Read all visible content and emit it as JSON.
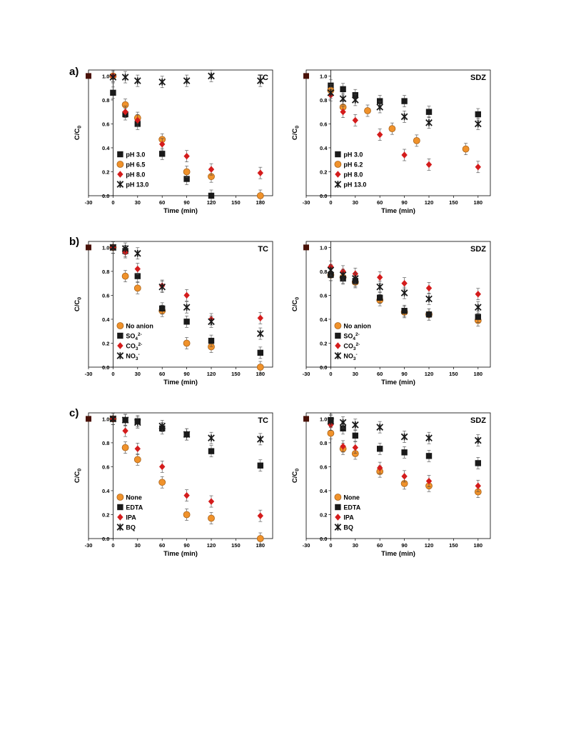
{
  "colors": {
    "orange": "#f0922b",
    "orange_edge": "#a8621a",
    "black": "#1a1a1a",
    "red": "#d41c1c",
    "axis": "#000000",
    "start_marker": "#4a1208"
  },
  "panel_labels": {
    "a": "a)",
    "b": "b)",
    "c": "c)"
  },
  "chart_data": [
    {
      "id": "a-TC",
      "type": "scatter",
      "title": "TC",
      "xlabel": "Time (min)",
      "ylabel": "C/C0",
      "xlim": [
        -30,
        195
      ],
      "ylim": [
        0,
        1.05
      ],
      "xticks": [
        "-30",
        "0",
        "30",
        "60",
        "90",
        "120",
        "150",
        "180"
      ],
      "yticks": [
        "0.0",
        "0.2",
        "0.4",
        "0.6",
        "0.8",
        "1.0"
      ],
      "grid": false,
      "legend_position": "bottom-left",
      "series": [
        {
          "name": "pH 3.0",
          "marker": "square",
          "color": "#1a1a1a",
          "points": [
            [
              0,
              0.86
            ],
            [
              15,
              0.68
            ],
            [
              30,
              0.6
            ],
            [
              60,
              0.35
            ],
            [
              90,
              0.14
            ],
            [
              120,
              0.0
            ]
          ]
        },
        {
          "name": "pH 6.5",
          "marker": "circle",
          "color": "#f0922b",
          "points": [
            [
              0,
              1.0
            ],
            [
              15,
              0.76
            ],
            [
              30,
              0.65
            ],
            [
              60,
              0.47
            ],
            [
              90,
              0.2
            ],
            [
              120,
              0.16
            ],
            [
              180,
              0.0
            ]
          ]
        },
        {
          "name": "pH 8.0",
          "marker": "diamond",
          "color": "#d41c1c",
          "points": [
            [
              0,
              1.0
            ],
            [
              15,
              0.7
            ],
            [
              30,
              0.63
            ],
            [
              60,
              0.43
            ],
            [
              90,
              0.33
            ],
            [
              120,
              0.22
            ],
            [
              180,
              0.19
            ]
          ]
        },
        {
          "name": "pH 13.0",
          "marker": "star",
          "color": "#1a1a1a",
          "points": [
            [
              0,
              0.99
            ],
            [
              15,
              0.99
            ],
            [
              30,
              0.96
            ],
            [
              60,
              0.95
            ],
            [
              90,
              0.96
            ],
            [
              120,
              1.0
            ],
            [
              180,
              0.96
            ]
          ]
        }
      ]
    },
    {
      "id": "a-SDZ",
      "type": "scatter",
      "title": "SDZ",
      "xlabel": "Time (min)",
      "ylabel": "C/C0",
      "xlim": [
        -30,
        195
      ],
      "ylim": [
        0,
        1.05
      ],
      "xticks": [
        "-30",
        "0",
        "30",
        "60",
        "90",
        "120",
        "150",
        "180"
      ],
      "yticks": [
        "0.0",
        "0.2",
        "0.4",
        "0.6",
        "0.8",
        "1.0"
      ],
      "grid": false,
      "legend_position": "bottom-left",
      "series": [
        {
          "name": "pH 3.0",
          "marker": "square",
          "color": "#1a1a1a",
          "points": [
            [
              0,
              0.92
            ],
            [
              15,
              0.89
            ],
            [
              30,
              0.84
            ],
            [
              60,
              0.79
            ],
            [
              90,
              0.79
            ],
            [
              120,
              0.7
            ],
            [
              180,
              0.68
            ]
          ]
        },
        {
          "name": "pH 6.2",
          "marker": "circle",
          "color": "#f0922b",
          "points": [
            [
              0,
              0.88
            ],
            [
              15,
              0.74
            ],
            [
              45,
              0.71
            ],
            [
              75,
              0.56
            ],
            [
              105,
              0.46
            ],
            [
              165,
              0.39
            ]
          ]
        },
        {
          "name": "pH 8.0",
          "marker": "diamond",
          "color": "#d41c1c",
          "points": [
            [
              0,
              0.84
            ],
            [
              15,
              0.7
            ],
            [
              30,
              0.63
            ],
            [
              60,
              0.51
            ],
            [
              90,
              0.34
            ],
            [
              120,
              0.26
            ],
            [
              180,
              0.24
            ]
          ]
        },
        {
          "name": "pH 13.0",
          "marker": "star",
          "color": "#1a1a1a",
          "points": [
            [
              0,
              0.86
            ],
            [
              15,
              0.81
            ],
            [
              30,
              0.8
            ],
            [
              60,
              0.74
            ],
            [
              90,
              0.66
            ],
            [
              120,
              0.61
            ],
            [
              180,
              0.6
            ]
          ]
        }
      ]
    },
    {
      "id": "b-TC",
      "type": "scatter",
      "title": "TC",
      "xlabel": "Time (min)",
      "ylabel": "C/C0",
      "xlim": [
        -30,
        195
      ],
      "ylim": [
        0,
        1.05
      ],
      "xticks": [
        "-30",
        "0",
        "30",
        "60",
        "90",
        "120",
        "150",
        "180"
      ],
      "yticks": [
        "0.0",
        "0.2",
        "0.4",
        "0.6",
        "0.8",
        "1.0"
      ],
      "grid": false,
      "legend_position": "bottom-left",
      "series": [
        {
          "name": "No anion",
          "marker": "circle",
          "color": "#f0922b",
          "points": [
            [
              0,
              1.0
            ],
            [
              15,
              0.76
            ],
            [
              30,
              0.66
            ],
            [
              60,
              0.47
            ],
            [
              90,
              0.2
            ],
            [
              120,
              0.17
            ],
            [
              180,
              0.0
            ]
          ]
        },
        {
          "name": "SO42-",
          "marker": "square",
          "color": "#1a1a1a",
          "points": [
            [
              0,
              1.0
            ],
            [
              15,
              0.97
            ],
            [
              30,
              0.76
            ],
            [
              60,
              0.49
            ],
            [
              90,
              0.38
            ],
            [
              120,
              0.22
            ],
            [
              180,
              0.12
            ]
          ]
        },
        {
          "name": "CO32-",
          "marker": "diamond",
          "color": "#d41c1c",
          "points": [
            [
              0,
              1.0
            ],
            [
              15,
              0.96
            ],
            [
              30,
              0.82
            ],
            [
              60,
              0.68
            ],
            [
              90,
              0.6
            ],
            [
              120,
              0.4
            ],
            [
              180,
              0.41
            ]
          ]
        },
        {
          "name": "NO3-",
          "marker": "star",
          "color": "#1a1a1a",
          "points": [
            [
              0,
              1.0
            ],
            [
              15,
              0.99
            ],
            [
              30,
              0.95
            ],
            [
              60,
              0.67
            ],
            [
              90,
              0.5
            ],
            [
              120,
              0.38
            ],
            [
              180,
              0.28
            ]
          ]
        }
      ]
    },
    {
      "id": "b-SDZ",
      "type": "scatter",
      "title": "SDZ",
      "xlabel": "Time (min)",
      "ylabel": "C/C0",
      "xlim": [
        -30,
        195
      ],
      "ylim": [
        0,
        1.05
      ],
      "xticks": [
        "-30",
        "0",
        "30",
        "60",
        "90",
        "120",
        "150",
        "180"
      ],
      "yticks": [
        "0.0",
        "0.2",
        "0.4",
        "0.6",
        "0.8",
        "1.0"
      ],
      "grid": false,
      "legend_position": "bottom-left",
      "series": [
        {
          "name": "No anion",
          "marker": "circle",
          "color": "#f0922b",
          "points": [
            [
              0,
              0.77
            ],
            [
              15,
              0.75
            ],
            [
              30,
              0.71
            ],
            [
              60,
              0.56
            ],
            [
              90,
              0.46
            ],
            [
              120,
              0.44
            ],
            [
              180,
              0.39
            ]
          ]
        },
        {
          "name": "SO42-",
          "marker": "square",
          "color": "#1a1a1a",
          "points": [
            [
              0,
              0.77
            ],
            [
              15,
              0.74
            ],
            [
              30,
              0.72
            ],
            [
              60,
              0.58
            ],
            [
              90,
              0.47
            ],
            [
              120,
              0.44
            ],
            [
              180,
              0.42
            ]
          ]
        },
        {
          "name": "CO32-",
          "marker": "diamond",
          "color": "#d41c1c",
          "points": [
            [
              0,
              0.84
            ],
            [
              15,
              0.8
            ],
            [
              30,
              0.78
            ],
            [
              60,
              0.75
            ],
            [
              90,
              0.7
            ],
            [
              120,
              0.66
            ],
            [
              180,
              0.61
            ]
          ]
        },
        {
          "name": "NO3-",
          "marker": "star",
          "color": "#1a1a1a",
          "points": [
            [
              0,
              0.81
            ],
            [
              15,
              0.77
            ],
            [
              30,
              0.74
            ],
            [
              60,
              0.67
            ],
            [
              90,
              0.62
            ],
            [
              120,
              0.57
            ],
            [
              180,
              0.5
            ]
          ]
        }
      ]
    },
    {
      "id": "c-TC",
      "type": "scatter",
      "title": "TC",
      "xlabel": "Time (min)",
      "ylabel": "C/C0",
      "xlim": [
        -30,
        195
      ],
      "ylim": [
        0,
        1.05
      ],
      "xticks": [
        "-30",
        "0",
        "30",
        "60",
        "90",
        "120",
        "150",
        "180"
      ],
      "yticks": [
        "0.0",
        "0.2",
        "0.4",
        "0.6",
        "0.8",
        "1.0"
      ],
      "grid": false,
      "legend_position": "bottom-left",
      "series": [
        {
          "name": "None",
          "marker": "circle",
          "color": "#f0922b",
          "points": [
            [
              0,
              1.0
            ],
            [
              15,
              0.76
            ],
            [
              30,
              0.66
            ],
            [
              60,
              0.47
            ],
            [
              90,
              0.2
            ],
            [
              120,
              0.17
            ],
            [
              180,
              0.0
            ]
          ]
        },
        {
          "name": "EDTA",
          "marker": "square",
          "color": "#1a1a1a",
          "points": [
            [
              0,
              1.0
            ],
            [
              15,
              0.99
            ],
            [
              30,
              0.98
            ],
            [
              60,
              0.92
            ],
            [
              90,
              0.87
            ],
            [
              120,
              0.73
            ],
            [
              180,
              0.61
            ]
          ]
        },
        {
          "name": "IPA",
          "marker": "diamond",
          "color": "#d41c1c",
          "points": [
            [
              0,
              1.0
            ],
            [
              15,
              0.9
            ],
            [
              30,
              0.75
            ],
            [
              60,
              0.6
            ],
            [
              90,
              0.36
            ],
            [
              120,
              0.31
            ],
            [
              180,
              0.19
            ]
          ]
        },
        {
          "name": "BQ",
          "marker": "star",
          "color": "#1a1a1a",
          "points": [
            [
              0,
              1.0
            ],
            [
              15,
              0.99
            ],
            [
              30,
              0.97
            ],
            [
              60,
              0.94
            ],
            [
              90,
              0.87
            ],
            [
              120,
              0.84
            ],
            [
              180,
              0.83
            ]
          ]
        }
      ]
    },
    {
      "id": "c-SDZ",
      "type": "scatter",
      "title": "SDZ",
      "xlabel": "Time (min)",
      "ylabel": "C/C0",
      "xlim": [
        -30,
        195
      ],
      "ylim": [
        0,
        1.05
      ],
      "xticks": [
        "-30",
        "0",
        "30",
        "60",
        "90",
        "120",
        "150",
        "180"
      ],
      "yticks": [
        "0.0",
        "0.2",
        "0.4",
        "0.6",
        "0.8",
        "1.0"
      ],
      "grid": false,
      "legend_position": "bottom-left",
      "series": [
        {
          "name": "None",
          "marker": "circle",
          "color": "#f0922b",
          "points": [
            [
              0,
              0.88
            ],
            [
              15,
              0.75
            ],
            [
              30,
              0.71
            ],
            [
              60,
              0.56
            ],
            [
              90,
              0.46
            ],
            [
              120,
              0.44
            ],
            [
              180,
              0.39
            ]
          ]
        },
        {
          "name": "EDTA",
          "marker": "square",
          "color": "#1a1a1a",
          "points": [
            [
              0,
              0.99
            ],
            [
              15,
              0.92
            ],
            [
              30,
              0.86
            ],
            [
              60,
              0.75
            ],
            [
              90,
              0.72
            ],
            [
              120,
              0.69
            ],
            [
              180,
              0.63
            ]
          ]
        },
        {
          "name": "IPA",
          "marker": "diamond",
          "color": "#d41c1c",
          "points": [
            [
              0,
              0.95
            ],
            [
              15,
              0.77
            ],
            [
              30,
              0.76
            ],
            [
              60,
              0.59
            ],
            [
              90,
              0.52
            ],
            [
              120,
              0.48
            ],
            [
              180,
              0.44
            ]
          ]
        },
        {
          "name": "BQ",
          "marker": "star",
          "color": "#1a1a1a",
          "points": [
            [
              0,
              0.98
            ],
            [
              15,
              0.97
            ],
            [
              30,
              0.95
            ],
            [
              60,
              0.93
            ],
            [
              90,
              0.85
            ],
            [
              120,
              0.84
            ],
            [
              180,
              0.82
            ]
          ]
        }
      ]
    }
  ]
}
